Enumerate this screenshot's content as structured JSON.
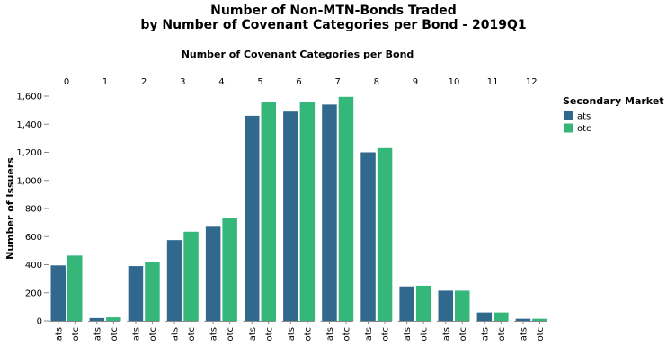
{
  "chart_data": {
    "type": "bar",
    "title_lines": [
      "Number of Non-MTN-Bonds Traded",
      "by Number of Covenant Categories per Bond - 2019Q1"
    ],
    "column_axis_title": "Number of Covenant Categories per Bond",
    "ylabel": "Number of Issuers",
    "ylim": [
      0,
      1600
    ],
    "yticks": [
      0,
      200,
      400,
      600,
      800,
      1000,
      1200,
      1400,
      1600
    ],
    "ytick_labels": [
      "0",
      "200",
      "400",
      "600",
      "800",
      "1,000",
      "1,200",
      "1,400",
      "1,600"
    ],
    "grid": false,
    "columns": [
      "0",
      "1",
      "2",
      "3",
      "4",
      "5",
      "6",
      "7",
      "8",
      "9",
      "10",
      "11",
      "12"
    ],
    "bar_categories": [
      "ats",
      "otc"
    ],
    "series": [
      {
        "name": "ats",
        "color": "#31688e",
        "values": [
          395,
          20,
          390,
          575,
          670,
          1460,
          1490,
          1540,
          1200,
          245,
          215,
          60,
          15
        ]
      },
      {
        "name": "otc",
        "color": "#35b779",
        "values": [
          465,
          25,
          420,
          635,
          730,
          1555,
          1555,
          1595,
          1230,
          250,
          215,
          60,
          15
        ]
      }
    ],
    "legend": {
      "title": "Secondary Market",
      "position": "right",
      "entries": [
        "ats",
        "otc"
      ]
    }
  }
}
